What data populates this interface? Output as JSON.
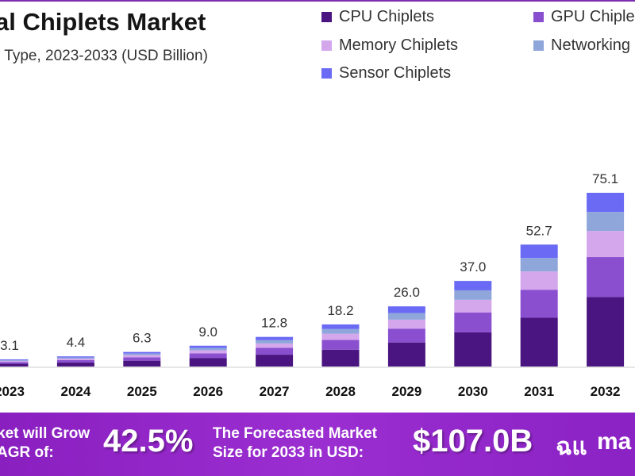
{
  "chart_data": {
    "type": "bar",
    "stacked": true,
    "title": "al Chiplets Market",
    "subtitle": "r Type, 2023-2033 (USD Billion)",
    "categories": [
      "2023",
      "2024",
      "2025",
      "2026",
      "2027",
      "2028",
      "2029",
      "2030",
      "2031",
      "2032"
    ],
    "totals": [
      "3.1",
      "4.4",
      "6.3",
      "9.0",
      "12.8",
      "18.2",
      "26.0",
      "37.0",
      "52.7",
      "75.1"
    ],
    "series": [
      {
        "name": "CPU Chiplets",
        "color": "#4a1580",
        "values": [
          1.24,
          1.76,
          2.52,
          3.6,
          5.12,
          7.28,
          10.4,
          14.8,
          21.08,
          30.04
        ]
      },
      {
        "name": "GPU Chiple",
        "color": "#8a4fcf",
        "values": [
          0.71,
          1.01,
          1.45,
          2.07,
          2.94,
          4.19,
          5.98,
          8.51,
          12.12,
          17.27
        ]
      },
      {
        "name": "Memory Chiplets",
        "color": "#d4a6ec",
        "values": [
          0.47,
          0.66,
          0.95,
          1.35,
          1.92,
          2.73,
          3.9,
          5.55,
          7.91,
          11.27
        ]
      },
      {
        "name": "Networking",
        "color": "#8fa6db",
        "values": [
          0.34,
          0.48,
          0.69,
          0.99,
          1.41,
          2.0,
          2.86,
          4.07,
          5.8,
          8.26
        ]
      },
      {
        "name": "Sensor Chiplets",
        "color": "#6a6af5",
        "values": [
          0.34,
          0.48,
          0.69,
          0.99,
          1.41,
          2.0,
          2.86,
          4.07,
          5.8,
          8.26
        ]
      }
    ],
    "ylim": [
      0,
      75.1
    ],
    "grid": false,
    "legend": "top-right"
  },
  "footer": {
    "cagr_text_1": "ket will Grow",
    "cagr_text_2": "AGR of:",
    "cagr_value": "42.5%",
    "forecast_text_1": "The Forecasted Market",
    "forecast_text_2": "Size for 2033 in USD:",
    "forecast_value": "$107.0B",
    "logo_text": "ma"
  }
}
